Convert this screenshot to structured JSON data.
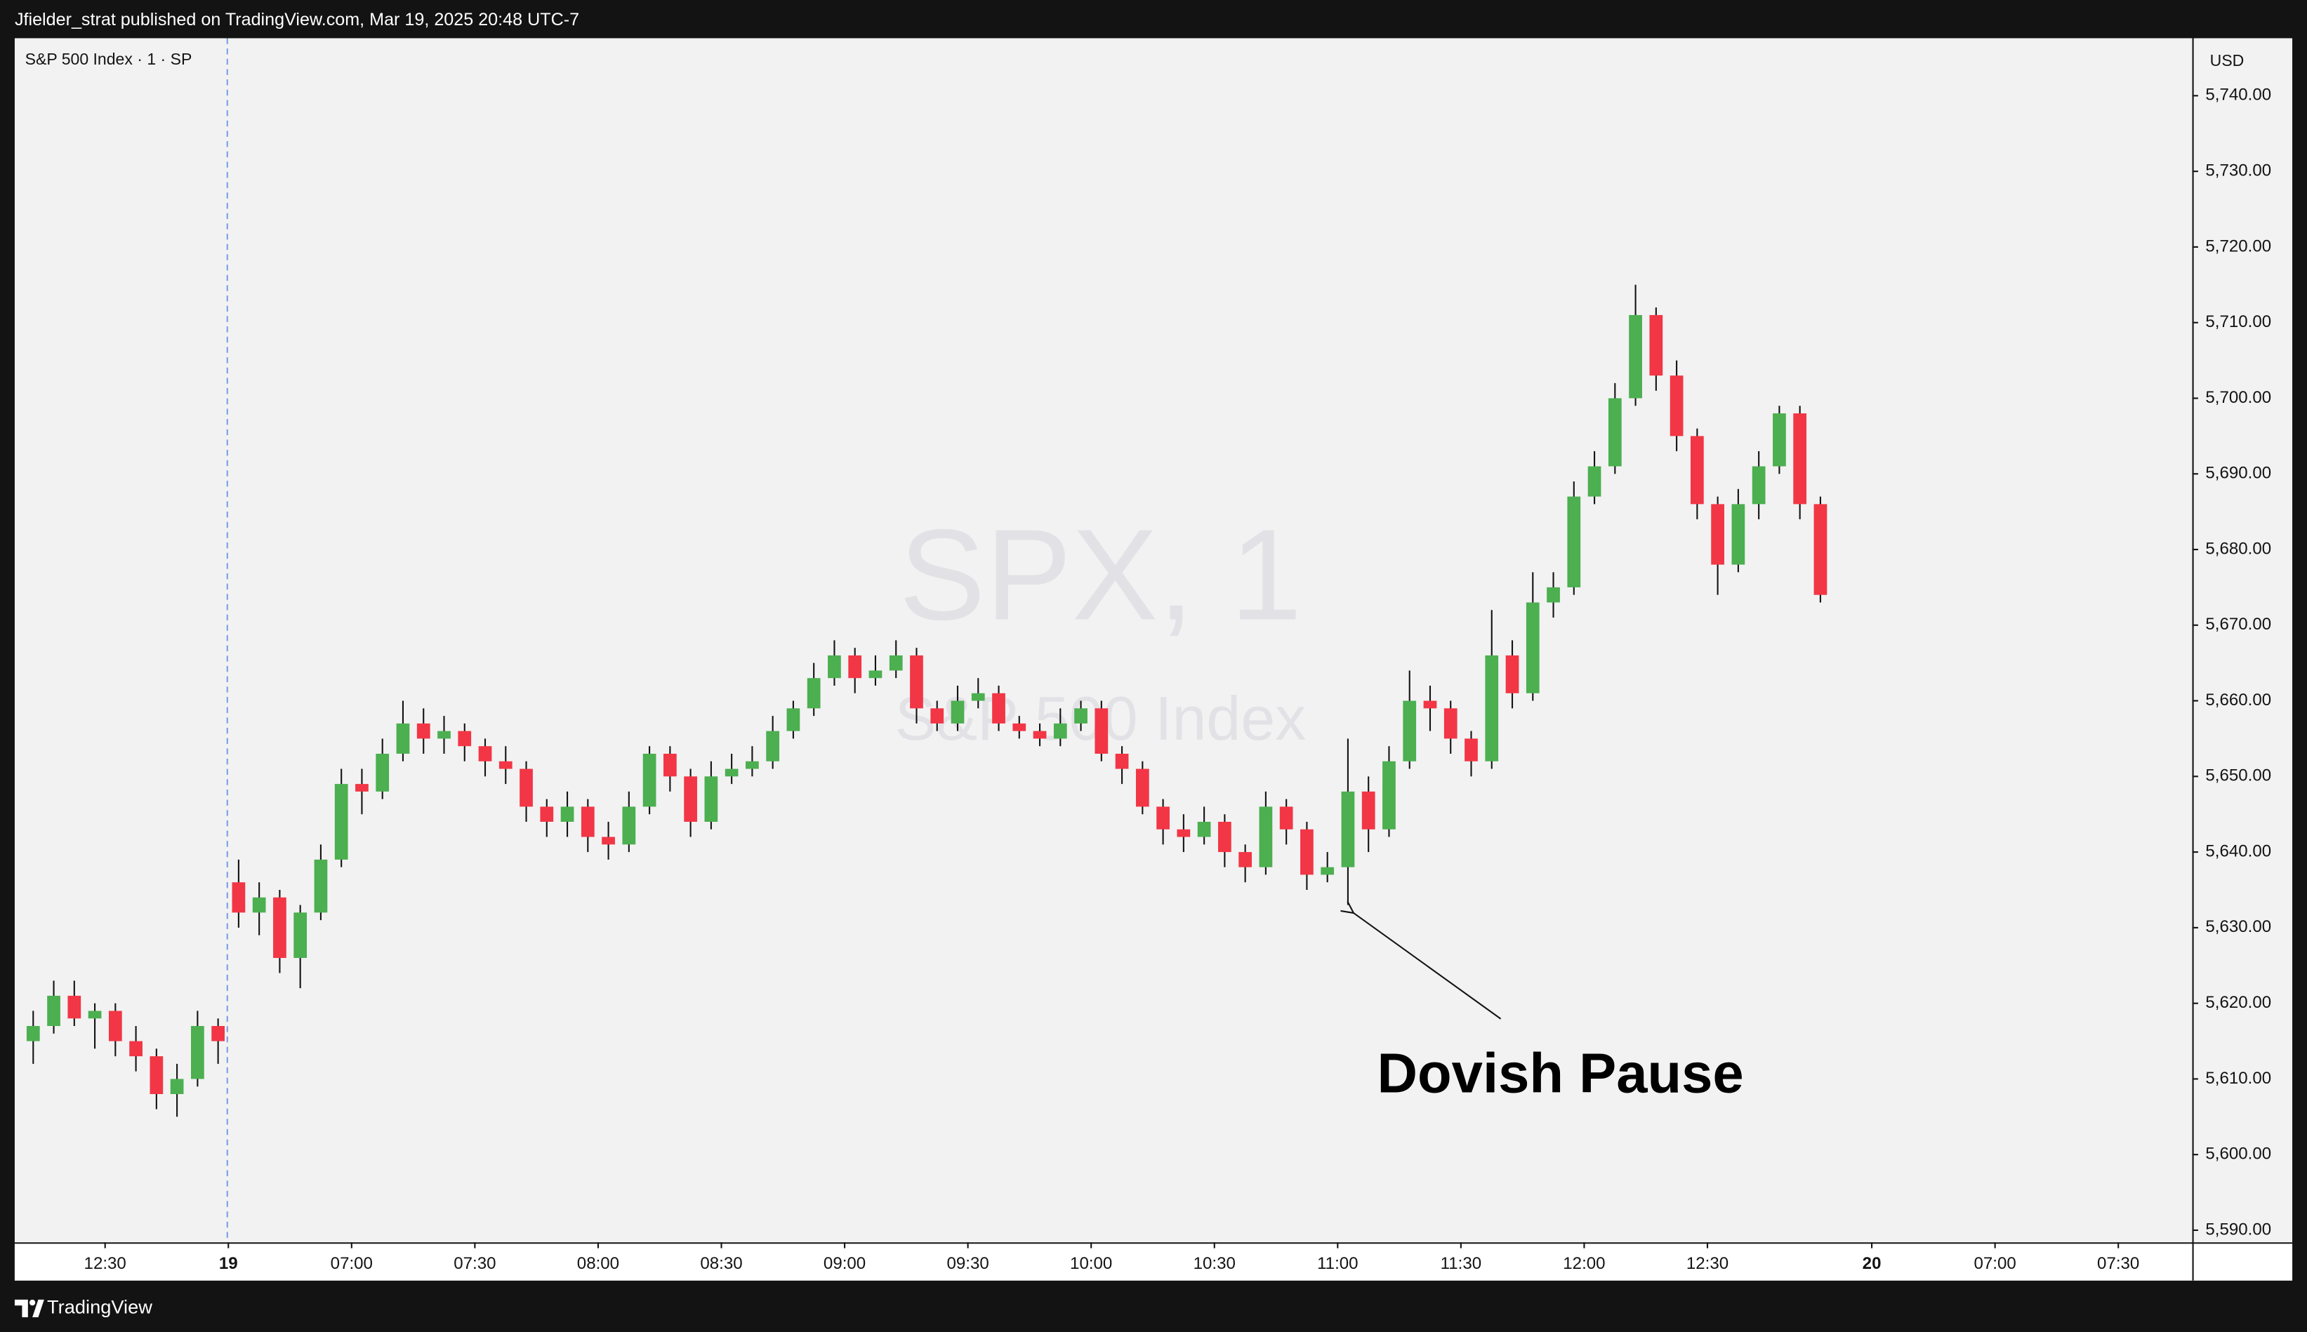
{
  "header": {
    "text": "Jfielder_strat published on TradingView.com, Mar 19, 2025 20:48 UTC-7"
  },
  "footer": {
    "brand": "TradingView"
  },
  "chart_data": {
    "type": "candlestick",
    "legend_text": "S&P 500 Index · 1 · SP",
    "watermark": "SPX, 1",
    "watermark_subtitle": "S&P 500 Index",
    "currency": "USD",
    "annotation": "Dovish Pause",
    "up_color": "#4caf50",
    "down_color": "#f23645",
    "grid": false,
    "xlim": [
      -52,
      478
    ],
    "ylim": [
      5588.4,
      5747.6
    ],
    "xticks": [
      {
        "value": -30,
        "label": "12:30"
      },
      {
        "value": 0,
        "label": "19"
      },
      {
        "value": 30,
        "label": "07:00"
      },
      {
        "value": 60,
        "label": "07:30"
      },
      {
        "value": 90,
        "label": "08:00"
      },
      {
        "value": 120,
        "label": "08:30"
      },
      {
        "value": 150,
        "label": "09:00"
      },
      {
        "value": 180,
        "label": "09:30"
      },
      {
        "value": 210,
        "label": "10:00"
      },
      {
        "value": 240,
        "label": "10:30"
      },
      {
        "value": 270,
        "label": "11:00"
      },
      {
        "value": 300,
        "label": "11:30"
      },
      {
        "value": 330,
        "label": "12:00"
      },
      {
        "value": 360,
        "label": "12:30"
      },
      {
        "value": 400,
        "label": "20"
      },
      {
        "value": 430,
        "label": "07:00"
      },
      {
        "value": 460,
        "label": "07:30"
      }
    ],
    "yticks": [
      {
        "value": 5590,
        "label": "5,590.00"
      },
      {
        "value": 5600,
        "label": "5,600.00"
      },
      {
        "value": 5610,
        "label": "5,610.00"
      },
      {
        "value": 5620,
        "label": "5,620.00"
      },
      {
        "value": 5630,
        "label": "5,630.00"
      },
      {
        "value": 5640,
        "label": "5,640.00"
      },
      {
        "value": 5650,
        "label": "5,650.00"
      },
      {
        "value": 5660,
        "label": "5,660.00"
      },
      {
        "value": 5670,
        "label": "5,670.00"
      },
      {
        "value": 5680,
        "label": "5,680.00"
      },
      {
        "value": 5690,
        "label": "5,690.00"
      },
      {
        "value": 5700,
        "label": "5,700.00"
      },
      {
        "value": 5710,
        "label": "5,710.00"
      },
      {
        "value": 5720,
        "label": "5,720.00"
      },
      {
        "value": 5730,
        "label": "5,730.00"
      },
      {
        "value": 5740,
        "label": "5,740.00"
      }
    ],
    "x": [
      -50,
      -45,
      -40,
      -35,
      -30,
      -25,
      -20,
      -15,
      -10,
      -5,
      0,
      5,
      10,
      15,
      20,
      25,
      30,
      35,
      40,
      45,
      50,
      55,
      60,
      65,
      70,
      75,
      80,
      85,
      90,
      95,
      100,
      105,
      110,
      115,
      120,
      125,
      130,
      135,
      140,
      145,
      150,
      155,
      160,
      165,
      170,
      175,
      180,
      185,
      190,
      195,
      200,
      205,
      210,
      215,
      220,
      225,
      230,
      235,
      240,
      245,
      250,
      255,
      260,
      265,
      270,
      275,
      280,
      285,
      290,
      295,
      300,
      305,
      310,
      315,
      320,
      325,
      330,
      335,
      340,
      345,
      350,
      355,
      360,
      365,
      370,
      375,
      380,
      385
    ],
    "open": [
      5615,
      5617,
      5621,
      5618,
      5619,
      5615,
      5613,
      5608,
      5610,
      5617,
      5636,
      5632,
      5634,
      5626,
      5632,
      5639,
      5649,
      5648,
      5653,
      5657,
      5655,
      5656,
      5654,
      5652,
      5651,
      5646,
      5644,
      5646,
      5642,
      5641,
      5646,
      5653,
      5650,
      5644,
      5650,
      5651,
      5652,
      5656,
      5659,
      5663,
      5666,
      5663,
      5664,
      5666,
      5659,
      5657,
      5660,
      5661,
      5657,
      5656,
      5655,
      5657,
      5659,
      5653,
      5651,
      5646,
      5643,
      5642,
      5644,
      5640,
      5638,
      5646,
      5643,
      5637,
      5638,
      5648,
      5643,
      5652,
      5660,
      5659,
      5655,
      5652,
      5666,
      5661,
      5673,
      5675,
      5687,
      5691,
      5700,
      5711,
      5703,
      5695,
      5686,
      5678,
      5686,
      5691,
      5698,
      5686
    ],
    "high": [
      5619,
      5623,
      5623,
      5620,
      5620,
      5617,
      5614,
      5612,
      5619,
      5618,
      5639,
      5636,
      5635,
      5633,
      5641,
      5651,
      5651,
      5655,
      5660,
      5659,
      5658,
      5657,
      5655,
      5654,
      5652,
      5647,
      5648,
      5647,
      5644,
      5648,
      5654,
      5654,
      5651,
      5652,
      5653,
      5654,
      5658,
      5660,
      5665,
      5668,
      5667,
      5666,
      5668,
      5667,
      5660,
      5662,
      5663,
      5662,
      5658,
      5657,
      5659,
      5660,
      5660,
      5654,
      5652,
      5647,
      5645,
      5646,
      5645,
      5641,
      5648,
      5647,
      5644,
      5640,
      5655,
      5650,
      5654,
      5664,
      5662,
      5660,
      5656,
      5672,
      5668,
      5677,
      5677,
      5689,
      5693,
      5702,
      5715,
      5712,
      5705,
      5696,
      5687,
      5688,
      5693,
      5699,
      5699,
      5687
    ],
    "low": [
      5612,
      5616,
      5617,
      5614,
      5613,
      5611,
      5606,
      5605,
      5609,
      5612,
      5630,
      5629,
      5624,
      5622,
      5631,
      5638,
      5645,
      5647,
      5652,
      5653,
      5653,
      5652,
      5650,
      5649,
      5644,
      5642,
      5642,
      5640,
      5639,
      5640,
      5645,
      5648,
      5642,
      5643,
      5649,
      5650,
      5651,
      5655,
      5658,
      5662,
      5661,
      5662,
      5663,
      5657,
      5656,
      5656,
      5659,
      5656,
      5655,
      5654,
      5654,
      5656,
      5652,
      5649,
      5645,
      5641,
      5640,
      5641,
      5638,
      5636,
      5637,
      5641,
      5635,
      5636,
      5633,
      5640,
      5642,
      5651,
      5656,
      5653,
      5650,
      5651,
      5659,
      5660,
      5671,
      5674,
      5686,
      5690,
      5699,
      5701,
      5693,
      5684,
      5674,
      5677,
      5684,
      5690,
      5684,
      5673
    ],
    "close": [
      5617,
      5621,
      5618,
      5619,
      5615,
      5613,
      5608,
      5610,
      5617,
      5615,
      5632,
      5634,
      5626,
      5632,
      5639,
      5649,
      5648,
      5653,
      5657,
      5655,
      5656,
      5654,
      5652,
      5651,
      5646,
      5644,
      5646,
      5642,
      5641,
      5646,
      5653,
      5650,
      5644,
      5650,
      5651,
      5652,
      5656,
      5659,
      5663,
      5666,
      5663,
      5664,
      5666,
      5659,
      5657,
      5660,
      5661,
      5657,
      5656,
      5655,
      5657,
      5659,
      5653,
      5651,
      5646,
      5643,
      5642,
      5644,
      5640,
      5638,
      5646,
      5643,
      5637,
      5638,
      5648,
      5643,
      5652,
      5660,
      5659,
      5655,
      5652,
      5666,
      5661,
      5673,
      5675,
      5687,
      5691,
      5700,
      5711,
      5703,
      5695,
      5686,
      5678,
      5686,
      5691,
      5698,
      5686,
      5674
    ]
  }
}
